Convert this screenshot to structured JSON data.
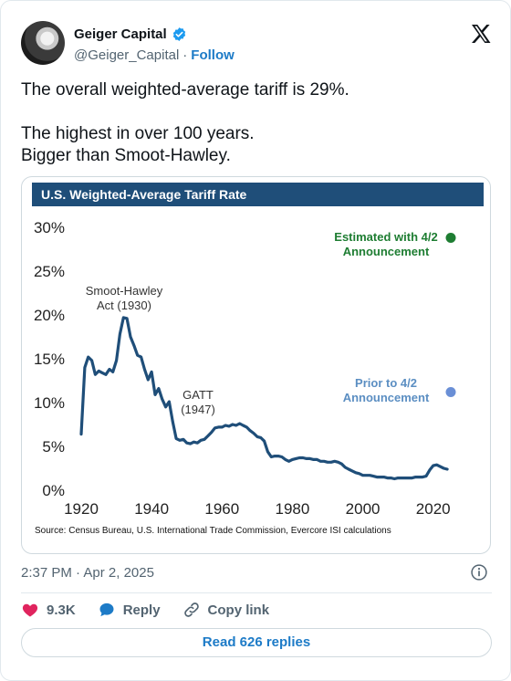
{
  "author": {
    "name": "Geiger Capital",
    "handle": "@Geiger_Capital",
    "separator": "·",
    "follow_label": "Follow",
    "verified_icon": "verified-badge-icon",
    "verified_color": "#1d9bf0"
  },
  "tweet": {
    "line1": "The overall weighted-average tariff is 29%.",
    "line2": "The highest in over 100 years.",
    "line3": "Bigger than Smoot-Hawley."
  },
  "chart_data": {
    "type": "line",
    "title": "U.S. Weighted-Average Tariff Rate",
    "source": "Source: Census Bureau, U.S. International Trade Commission, Evercore ISI calculations",
    "title_bar_color": "#1f4e79",
    "line_color": "#1f4e79",
    "x": [
      1920,
      1921,
      1922,
      1923,
      1924,
      1925,
      1926,
      1927,
      1928,
      1929,
      1930,
      1931,
      1932,
      1933,
      1934,
      1935,
      1936,
      1937,
      1938,
      1939,
      1940,
      1941,
      1942,
      1943,
      1944,
      1945,
      1946,
      1947,
      1948,
      1949,
      1950,
      1951,
      1952,
      1953,
      1954,
      1955,
      1956,
      1957,
      1958,
      1959,
      1960,
      1961,
      1962,
      1963,
      1964,
      1965,
      1966,
      1967,
      1968,
      1969,
      1970,
      1971,
      1972,
      1973,
      1974,
      1975,
      1976,
      1977,
      1978,
      1979,
      1980,
      1981,
      1982,
      1983,
      1984,
      1985,
      1986,
      1987,
      1988,
      1989,
      1990,
      1991,
      1992,
      1993,
      1994,
      1995,
      1996,
      1997,
      1998,
      1999,
      2000,
      2001,
      2002,
      2003,
      2004,
      2005,
      2006,
      2007,
      2008,
      2009,
      2010,
      2011,
      2012,
      2013,
      2014,
      2015,
      2016,
      2017,
      2018,
      2019,
      2020,
      2021,
      2022,
      2023,
      2024
    ],
    "series": [
      {
        "values": [
          6.4,
          14.0,
          15.2,
          14.8,
          13.2,
          13.6,
          13.4,
          13.2,
          13.8,
          13.5,
          14.8,
          17.8,
          19.7,
          19.6,
          17.5,
          16.5,
          15.4,
          15.2,
          13.8,
          12.6,
          13.5,
          10.9,
          11.6,
          10.4,
          9.5,
          10.1,
          7.8,
          5.9,
          5.7,
          5.8,
          5.4,
          5.3,
          5.5,
          5.4,
          5.7,
          5.8,
          6.2,
          6.6,
          7.1,
          7.2,
          7.2,
          7.4,
          7.3,
          7.5,
          7.4,
          7.6,
          7.4,
          7.2,
          6.8,
          6.5,
          6.1,
          6.0,
          5.6,
          4.4,
          3.8,
          3.9,
          3.9,
          3.8,
          3.5,
          3.3,
          3.5,
          3.6,
          3.7,
          3.7,
          3.6,
          3.6,
          3.5,
          3.5,
          3.3,
          3.3,
          3.2,
          3.2,
          3.3,
          3.2,
          3.0,
          2.6,
          2.4,
          2.2,
          2.0,
          1.9,
          1.7,
          1.7,
          1.7,
          1.6,
          1.5,
          1.5,
          1.5,
          1.4,
          1.4,
          1.3,
          1.4,
          1.4,
          1.4,
          1.4,
          1.4,
          1.5,
          1.5,
          1.5,
          1.6,
          2.3,
          2.8,
          2.9,
          2.7,
          2.5,
          2.4
        ]
      }
    ],
    "points": [
      {
        "label": "Estimated with 4/2\nAnnouncement",
        "year": 2025,
        "value": 28.8,
        "color": "#1e7d32",
        "label_color": "#1e7d32"
      },
      {
        "label": "Prior to 4/2\nAnnouncement",
        "year": 2025,
        "value": 11.2,
        "color": "#6a8fd6",
        "label_color": "#5b8ec2"
      }
    ],
    "annotations": [
      {
        "text": "Smoot-Hawley\nAct (1930)"
      },
      {
        "text": "GATT\n(1947)"
      }
    ],
    "xlim": [
      1920,
      2025
    ],
    "ylim": [
      0,
      30
    ],
    "xticks": [
      1920,
      1940,
      1960,
      1980,
      2000,
      2020
    ],
    "yticks": [
      "0%",
      "5%",
      "10%",
      "15%",
      "20%",
      "25%",
      "30%"
    ],
    "grid": false,
    "legend": "none"
  },
  "meta": {
    "time": "2:37 PM",
    "separator": "·",
    "date": "Apr 2, 2025"
  },
  "actions": {
    "likes": "9.3K",
    "reply_label": "Reply",
    "copy_label": "Copy link",
    "like_color": "#e0245e",
    "reply_color": "#1d7bc7"
  },
  "read_replies_label": "Read 626 replies"
}
